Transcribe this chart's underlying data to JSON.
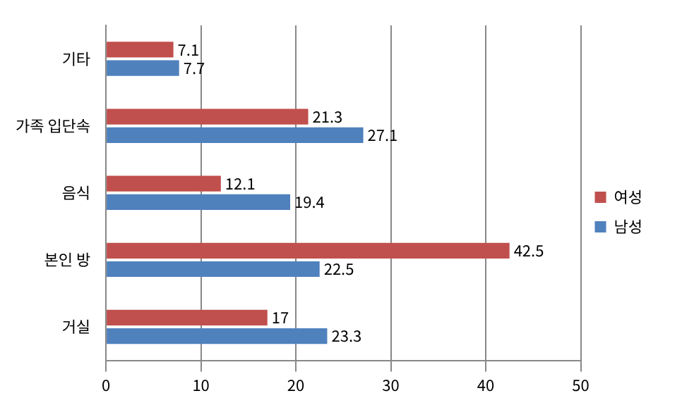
{
  "chart_data": {
    "type": "bar",
    "orientation": "horizontal",
    "categories": [
      "기타",
      "가족 입단속",
      "음식",
      "본인 방",
      "거실"
    ],
    "series": [
      {
        "name": "여성",
        "color": "#c0504d",
        "values": [
          7.1,
          21.3,
          12.1,
          42.5,
          17
        ]
      },
      {
        "name": "남성",
        "color": "#4f81bd",
        "values": [
          7.7,
          27.1,
          19.4,
          22.5,
          23.3
        ]
      }
    ],
    "xlim": [
      0,
      50
    ],
    "xticks": [
      0,
      10,
      20,
      30,
      40,
      50
    ],
    "grid": "x",
    "legend": "right",
    "data_labels": true
  }
}
